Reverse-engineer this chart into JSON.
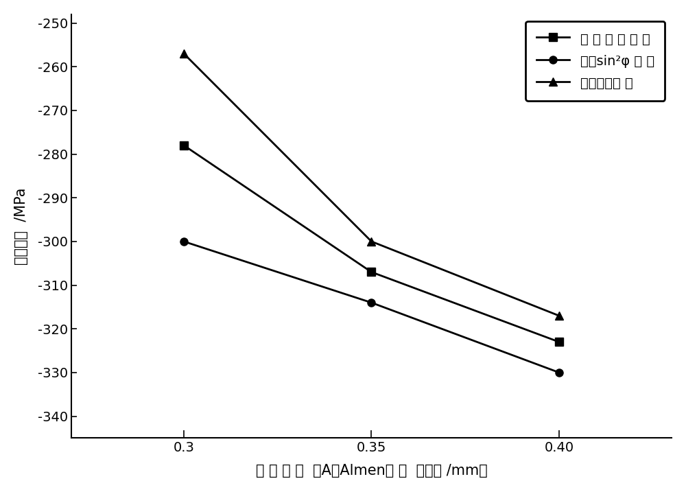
{
  "x": [
    0.3,
    0.35,
    0.4
  ],
  "series": [
    {
      "label_parts": [
        "全 谱 分 析 方 法",
        null,
        null
      ],
      "label": "全 谱 分 析 方 法",
      "y": [
        -278,
        -307,
        -323
      ],
      "marker": "s",
      "color": "#000000",
      "linewidth": 2.0,
      "markersize": 8
    },
    {
      "label": "传统sin²φ 方 法",
      "y": [
        -300,
        -314,
        -330
      ],
      "marker": "o",
      "color": "#000000",
      "linewidth": 2.0,
      "markersize": 8
    },
    {
      "label": "理论计算方 法",
      "y": [
        -257,
        -300,
        -317
      ],
      "marker": "^",
      "color": "#000000",
      "linewidth": 2.0,
      "markersize": 8
    }
  ],
  "xlabel": "喷 丸 强 度  （A型Almen试 片  弧高值 /mm）",
  "ylabel": "残余应力  /MPa",
  "ylim": [
    -345,
    -248
  ],
  "xlim": [
    0.27,
    0.43
  ],
  "yticks": [
    -340,
    -330,
    -320,
    -310,
    -300,
    -290,
    -280,
    -270,
    -260,
    -250
  ],
  "xticks": [
    0.3,
    0.35,
    0.4
  ],
  "xtick_labels": [
    "0.3",
    "0.35",
    "0.40"
  ],
  "legend_loc": "upper right",
  "figsize": [
    10.0,
    7.17
  ],
  "dpi": 100,
  "bg_color": "#ffffff",
  "xlabel_fontsize": 15,
  "ylabel_fontsize": 15,
  "legend_fontsize": 14,
  "tick_fontsize": 14,
  "legend_labels": [
    "全 谱 分 析 方 法",
    "传统sin²φ 方 法",
    "理论计算方 法"
  ]
}
